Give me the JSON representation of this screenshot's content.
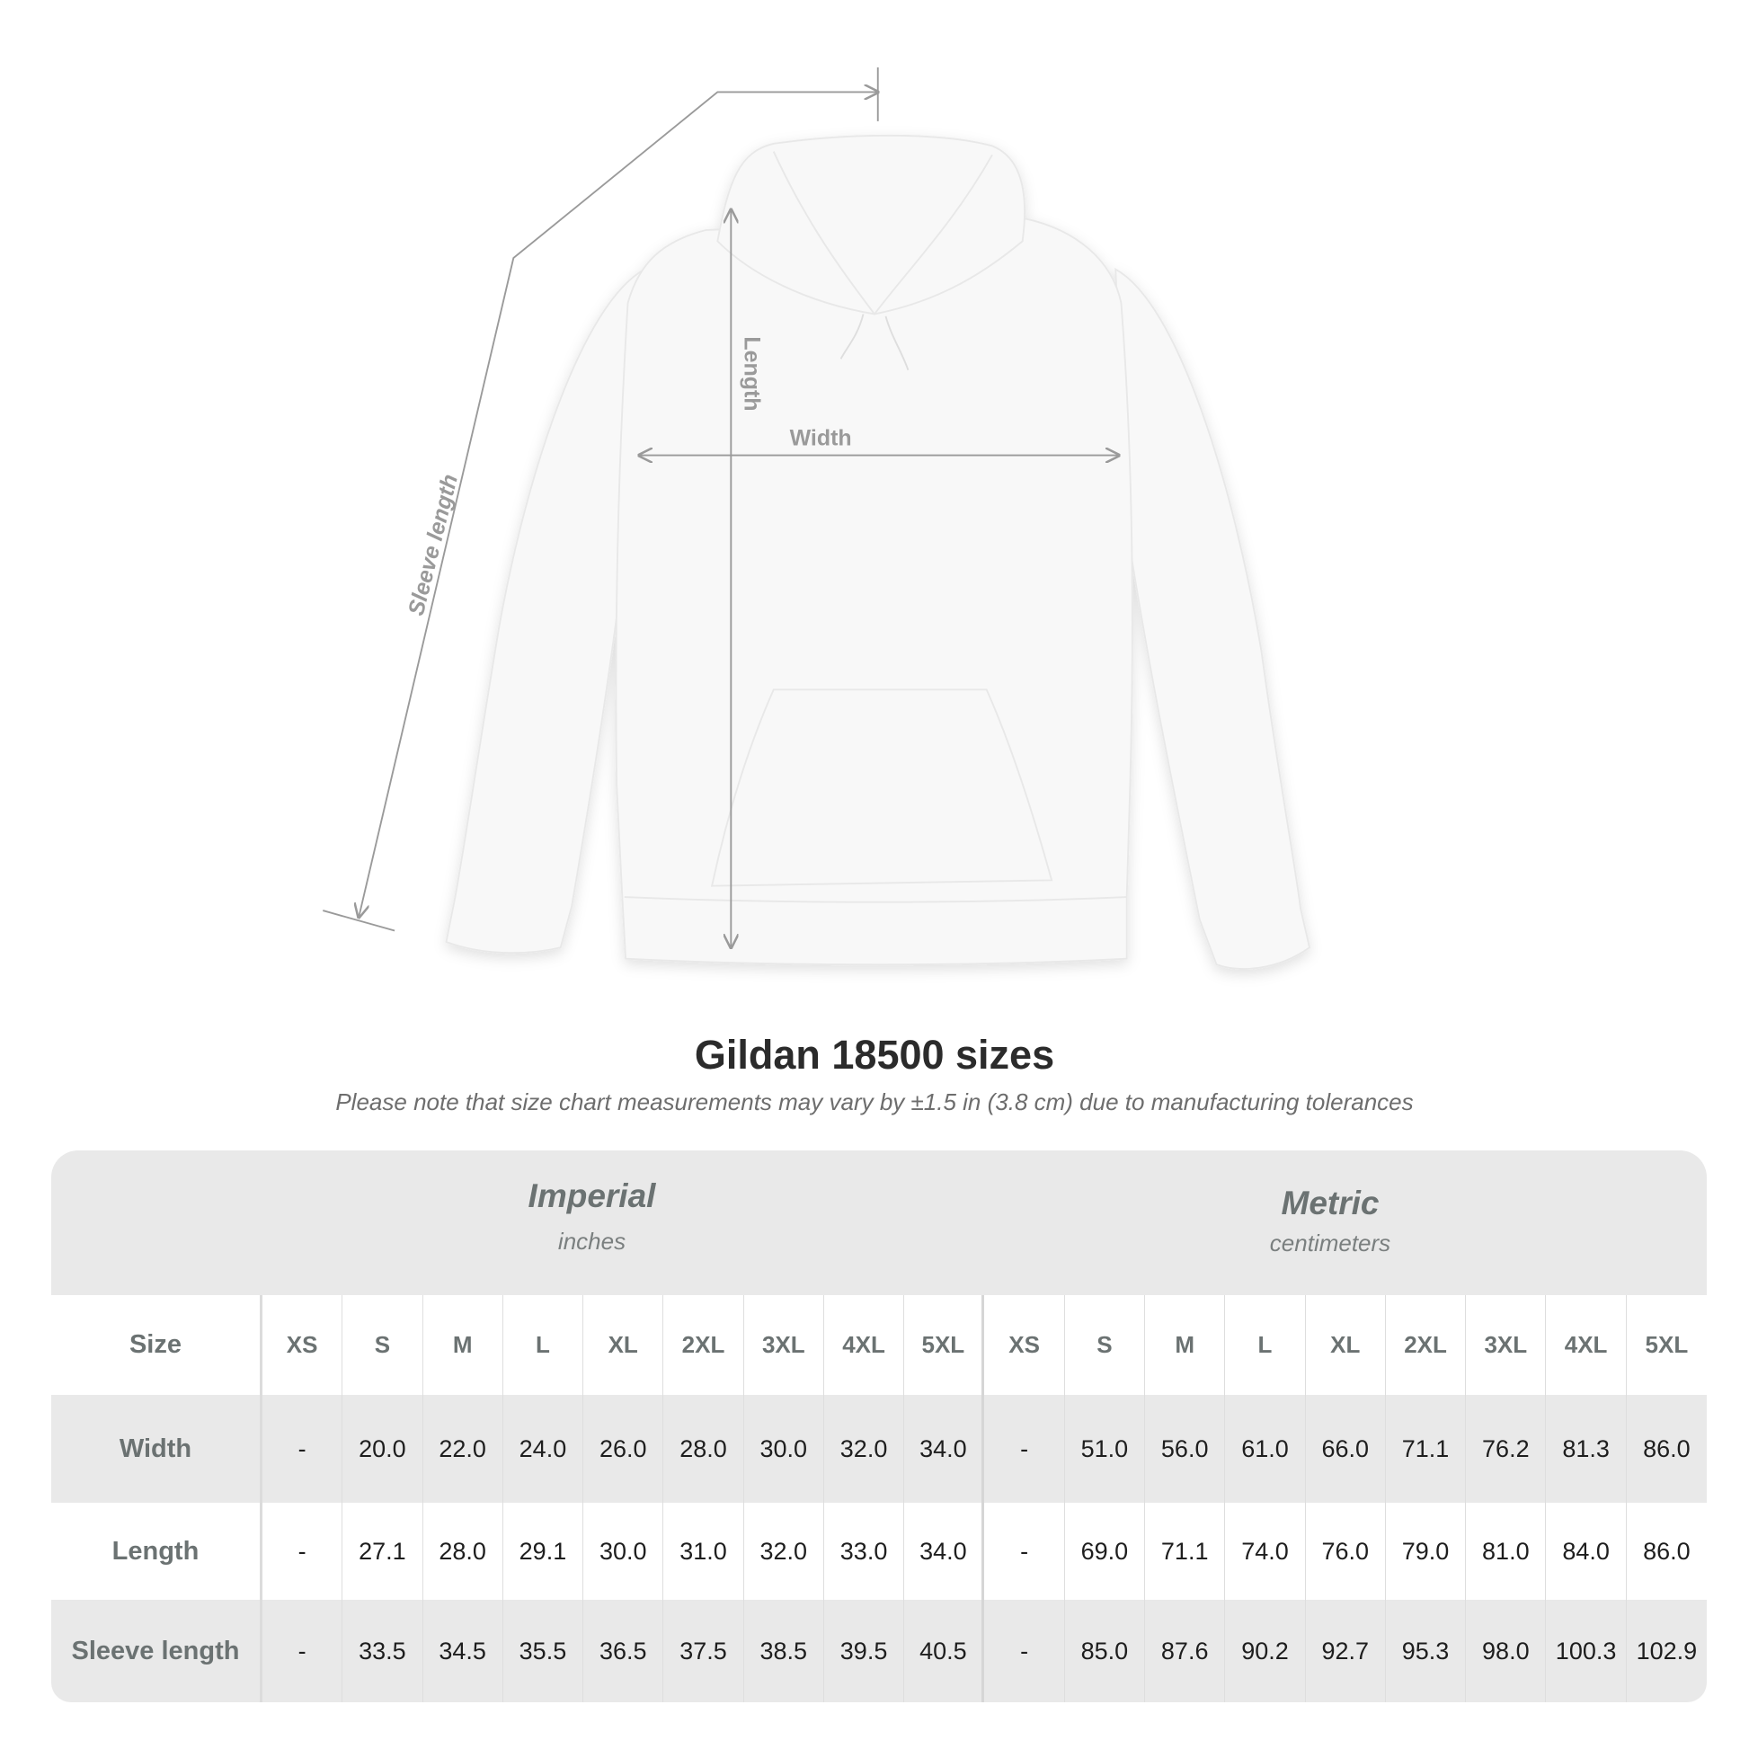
{
  "diagram": {
    "labels": {
      "length": "Length",
      "width": "Width",
      "sleeve": "Sleeve length"
    },
    "colors": {
      "line": "#9a9a9a",
      "label": "#9a9a9a",
      "garment": "#f8f8f8"
    }
  },
  "title": "Gildan 18500 sizes",
  "note": "Please note that size chart measurements may vary by ±1.5 in (3.8 cm) due to manufacturing tolerances",
  "table": {
    "imperial": {
      "name": "Imperial",
      "unit": "inches"
    },
    "metric": {
      "name": "Metric",
      "unit": "centimeters"
    },
    "size_label": "Size",
    "sizes": [
      "XS",
      "S",
      "M",
      "L",
      "XL",
      "2XL",
      "3XL",
      "4XL",
      "5XL",
      "XS",
      "S",
      "M",
      "L",
      "XL",
      "2XL",
      "3XL",
      "4XL",
      "5XL"
    ],
    "rows": [
      {
        "label": "Width",
        "values": [
          "-",
          "20.0",
          "22.0",
          "24.0",
          "26.0",
          "28.0",
          "30.0",
          "32.0",
          "34.0",
          "-",
          "51.0",
          "56.0",
          "61.0",
          "66.0",
          "71.1",
          "76.2",
          "81.3",
          "86.0"
        ]
      },
      {
        "label": "Length",
        "values": [
          "-",
          "27.1",
          "28.0",
          "29.1",
          "30.0",
          "31.0",
          "32.0",
          "33.0",
          "34.0",
          "-",
          "69.0",
          "71.1",
          "74.0",
          "76.0",
          "79.0",
          "81.0",
          "84.0",
          "86.0"
        ]
      },
      {
        "label": "Sleeve length",
        "values": [
          "-",
          "33.5",
          "34.5",
          "35.5",
          "36.5",
          "37.5",
          "38.5",
          "39.5",
          "40.5",
          "-",
          "85.0",
          "87.6",
          "90.2",
          "92.7",
          "95.3",
          "98.0",
          "100.3",
          "102.9"
        ]
      }
    ]
  }
}
